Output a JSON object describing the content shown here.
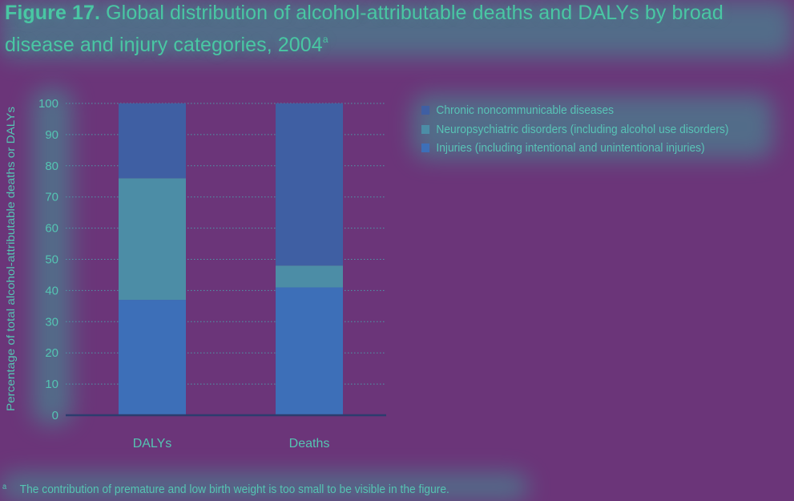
{
  "title": {
    "label": "Figure 17.",
    "text": "Global distribution of alcohol-attributable deaths and DALYs by broad disease and injury categories, 2004",
    "footnote_marker": "a"
  },
  "footnote": {
    "marker": "a",
    "text": "The contribution of premature and low birth weight is too small to be visible in the figure."
  },
  "colors": {
    "background": "#6b3579",
    "chronic": "#3f5fa3",
    "neuropsychiatric": "#4c8da6",
    "injuries": "#3d6fb8",
    "text": "#55c4b2",
    "title": "#49c7a3"
  },
  "chart_data": {
    "type": "bar",
    "stacked": true,
    "categories": [
      "DALYs",
      "Deaths"
    ],
    "series": [
      {
        "name": "Injuries (including intentional and unintentional injuries)",
        "values": [
          37,
          41
        ],
        "color_key": "injuries"
      },
      {
        "name": "Neuropsychiatric disorders (including alcohol use disorders)",
        "values": [
          39,
          7
        ],
        "color_key": "neuropsychiatric"
      },
      {
        "name": "Chronic noncommunicable diseases",
        "values": [
          24,
          52
        ],
        "color_key": "chronic"
      }
    ],
    "legend": [
      {
        "label": "Chronic noncommunicable diseases",
        "color_key": "chronic"
      },
      {
        "label": "Neuropsychiatric disorders (including alcohol use disorders)",
        "color_key": "neuropsychiatric"
      },
      {
        "label": "Injuries (including intentional and unintentional injuries)",
        "color_key": "injuries"
      }
    ],
    "legend_position": "top-right",
    "ylabel": "Percentage of total alcohol-attributable deaths or DALYs",
    "xlabel": "",
    "ylim": [
      0,
      100
    ],
    "yticks": [
      0,
      10,
      20,
      30,
      40,
      50,
      60,
      70,
      80,
      90,
      100
    ],
    "grid": true
  }
}
